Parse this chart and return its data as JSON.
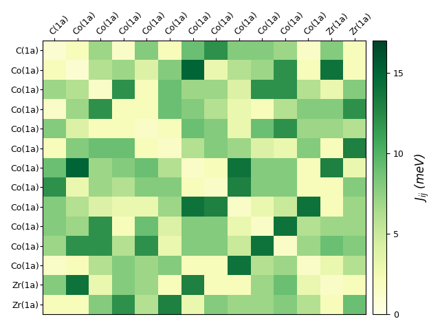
{
  "labels": [
    "C(1a)",
    "Co(1a)",
    "Co(1a)",
    "Co(1a)",
    "Co(1a)",
    "Co(1a)",
    "Co(1a)",
    "Co(1a)",
    "Co(1a)",
    "Co(1a)",
    "Co(1a)",
    "Co(1a)",
    "Zr(1a)",
    "Zr(1a)"
  ],
  "matrix": [
    [
      1.0,
      2.0,
      7.0,
      1.5,
      8.0,
      2.0,
      9.0,
      12.0,
      8.0,
      8.0,
      7.0,
      1.5,
      8.0,
      2.0
    ],
    [
      2.0,
      1.0,
      6.0,
      7.0,
      4.0,
      8.0,
      15.0,
      3.0,
      6.0,
      7.0,
      12.0,
      2.0,
      14.0,
      2.0
    ],
    [
      7.0,
      6.0,
      1.5,
      12.0,
      2.0,
      9.0,
      7.0,
      7.0,
      4.0,
      12.0,
      12.0,
      6.0,
      3.0,
      8.0
    ],
    [
      1.5,
      7.0,
      12.0,
      2.0,
      2.0,
      9.0,
      8.0,
      6.0,
      3.0,
      2.0,
      6.0,
      8.0,
      8.0,
      12.0
    ],
    [
      8.0,
      4.0,
      2.0,
      2.0,
      1.5,
      2.0,
      9.0,
      8.0,
      3.0,
      9.0,
      12.0,
      7.0,
      7.0,
      6.0
    ],
    [
      2.0,
      8.0,
      9.0,
      9.0,
      2.0,
      1.5,
      6.0,
      8.0,
      7.0,
      4.0,
      3.0,
      8.0,
      2.0,
      13.0
    ],
    [
      9.0,
      15.0,
      7.0,
      8.0,
      9.0,
      6.0,
      1.5,
      2.0,
      14.0,
      8.0,
      8.0,
      2.0,
      13.0,
      3.0
    ],
    [
      12.0,
      3.0,
      7.0,
      6.0,
      8.0,
      8.0,
      2.0,
      1.5,
      13.0,
      8.0,
      8.0,
      2.0,
      2.0,
      8.0
    ],
    [
      8.0,
      6.0,
      4.0,
      3.0,
      3.0,
      7.0,
      14.0,
      13.0,
      1.5,
      3.0,
      5.0,
      14.0,
      2.0,
      7.0
    ],
    [
      8.0,
      7.0,
      12.0,
      2.0,
      9.0,
      4.0,
      8.0,
      8.0,
      3.0,
      1.5,
      14.0,
      6.0,
      7.0,
      7.0
    ],
    [
      7.0,
      12.0,
      12.0,
      6.0,
      12.0,
      3.0,
      8.0,
      8.0,
      5.0,
      14.0,
      1.5,
      7.0,
      9.0,
      8.0
    ],
    [
      1.5,
      2.0,
      6.0,
      8.0,
      7.0,
      8.0,
      2.0,
      2.0,
      14.0,
      6.0,
      7.0,
      1.5,
      3.0,
      6.0
    ],
    [
      8.0,
      14.0,
      3.0,
      8.0,
      7.0,
      2.0,
      13.0,
      2.0,
      2.0,
      7.0,
      9.0,
      3.0,
      1.5,
      2.0
    ],
    [
      2.0,
      2.0,
      8.0,
      12.0,
      6.0,
      13.0,
      3.0,
      8.0,
      7.0,
      7.0,
      8.0,
      6.0,
      2.0,
      9.0
    ]
  ],
  "vmin": 0,
  "vmax": 17,
  "cmap": "YlGn",
  "colorbar_label": "$J_{ij}$ (meV)",
  "colorbar_ticks": [
    0,
    5,
    10,
    15
  ],
  "figsize": [
    6.4,
    4.8
  ],
  "dpi": 100,
  "tick_fontsize": 9,
  "cbar_fontsize": 12
}
